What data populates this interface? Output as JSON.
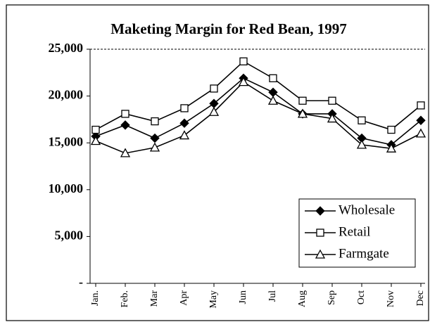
{
  "chart_data": {
    "type": "line",
    "title": "Maketing Margin for Red Bean, 1997",
    "categories": [
      "Jan.",
      "Feb.",
      "Mar",
      "Apr",
      "May",
      "Jun",
      "Jul",
      "Aug",
      "Sep",
      "Oct",
      "Nov",
      "Dec"
    ],
    "series": [
      {
        "name": "Wholesale",
        "color": "#000000",
        "marker": "diamond",
        "values": [
          15700,
          16900,
          15500,
          17100,
          19200,
          21900,
          20400,
          18100,
          18100,
          15500,
          14800,
          17400
        ]
      },
      {
        "name": "Retail",
        "color": "#000000",
        "marker": "square",
        "values": [
          16400,
          18100,
          17300,
          18700,
          20800,
          23700,
          21900,
          19500,
          19500,
          17400,
          16400,
          19000
        ]
      },
      {
        "name": "Farmgate",
        "color": "#000000",
        "marker": "triangle",
        "values": [
          15200,
          13900,
          14500,
          15800,
          18300,
          21500,
          19500,
          18100,
          17600,
          14800,
          14400,
          16000
        ]
      }
    ],
    "ylim": [
      0,
      25000
    ],
    "yticks": [
      {
        "value": 0,
        "label": "-"
      },
      {
        "value": 5000,
        "label": "5,000"
      },
      {
        "value": 10000,
        "label": "10,000"
      },
      {
        "value": 15000,
        "label": "15,000"
      },
      {
        "value": 20000,
        "label": "20,000"
      },
      {
        "value": 25000,
        "label": "25,000"
      }
    ],
    "grid": false,
    "legend": "lower right"
  }
}
